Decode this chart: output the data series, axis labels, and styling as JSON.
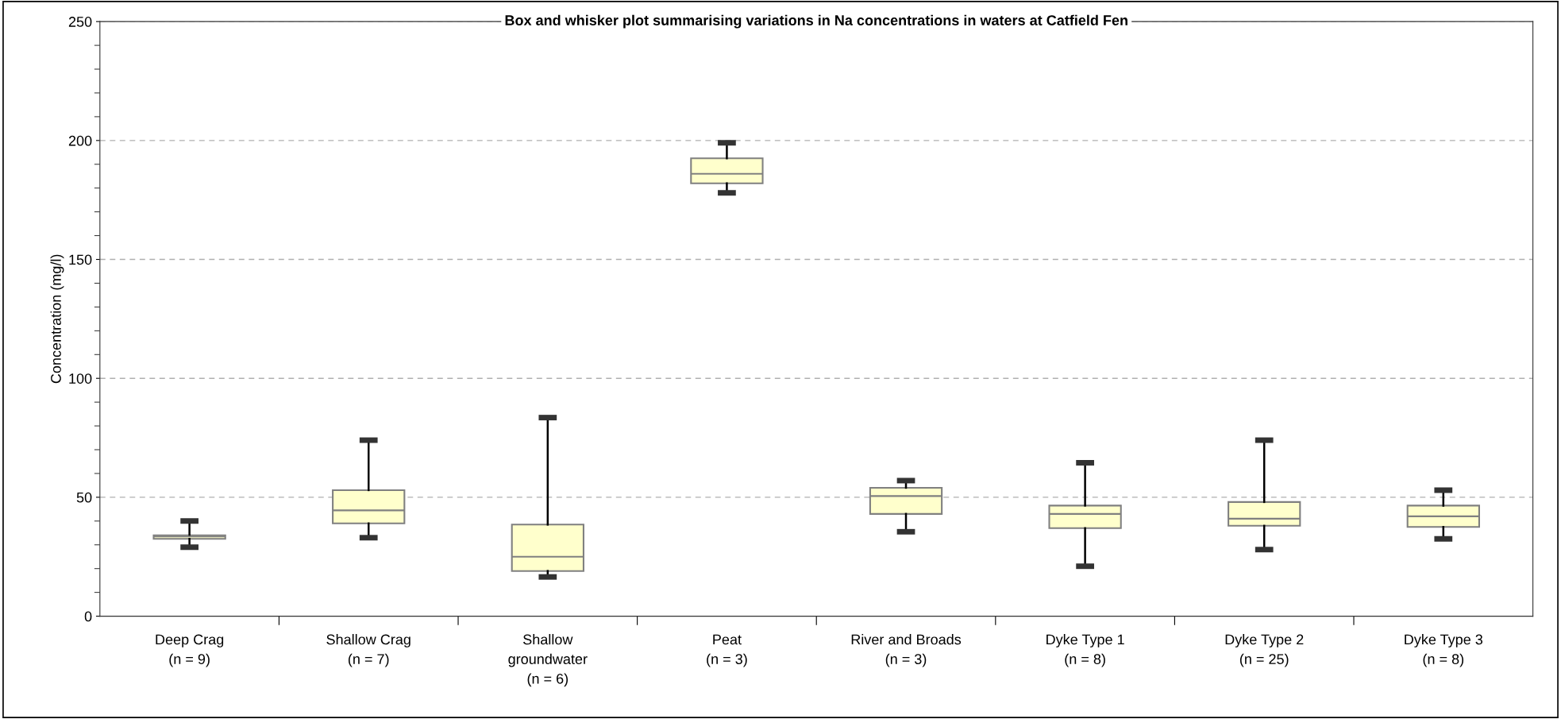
{
  "chart_data": {
    "type": "box",
    "title": "Box and whisker plot summarising variations in Na concentrations in waters at Catfield Fen",
    "ylabel": "Concentration (mg/l)",
    "categories": [
      "Deep Crag\n(n = 9)",
      "Shallow Crag\n(n = 7)",
      "Shallow\ngroundwater\n(n = 6)",
      "Peat\n(n = 3)",
      "River and Broads\n(n = 3)",
      "Dyke Type 1\n(n = 8)",
      "Dyke Type 2\n(n = 25)",
      "Dyke Type 3\n(n = 8)"
    ],
    "color": "#ffffcc",
    "boxes": [
      {
        "low": 29,
        "q1": 32.5,
        "median": 33.5,
        "q3": 34,
        "high": 40
      },
      {
        "low": 33,
        "q1": 39,
        "median": 44.5,
        "q3": 53,
        "high": 74
      },
      {
        "low": 16.5,
        "q1": 19,
        "median": 25,
        "q3": 38.5,
        "high": 83.5
      },
      {
        "low": 178,
        "q1": 182,
        "median": 186,
        "q3": 192.5,
        "high": 199
      },
      {
        "low": 35.5,
        "q1": 43,
        "median": 50.5,
        "q3": 54,
        "high": 57
      },
      {
        "low": 21,
        "q1": 37,
        "median": 43,
        "q3": 46.5,
        "high": 64.5
      },
      {
        "low": 28,
        "q1": 38,
        "median": 41,
        "q3": 48,
        "high": 74
      },
      {
        "low": 32.5,
        "q1": 37.5,
        "median": 42,
        "q3": 46.5,
        "high": 53
      }
    ],
    "ylim": [
      0,
      250
    ],
    "yticks": [
      0,
      50,
      100,
      150,
      200,
      250
    ],
    "grid": "y",
    "legend": false
  }
}
